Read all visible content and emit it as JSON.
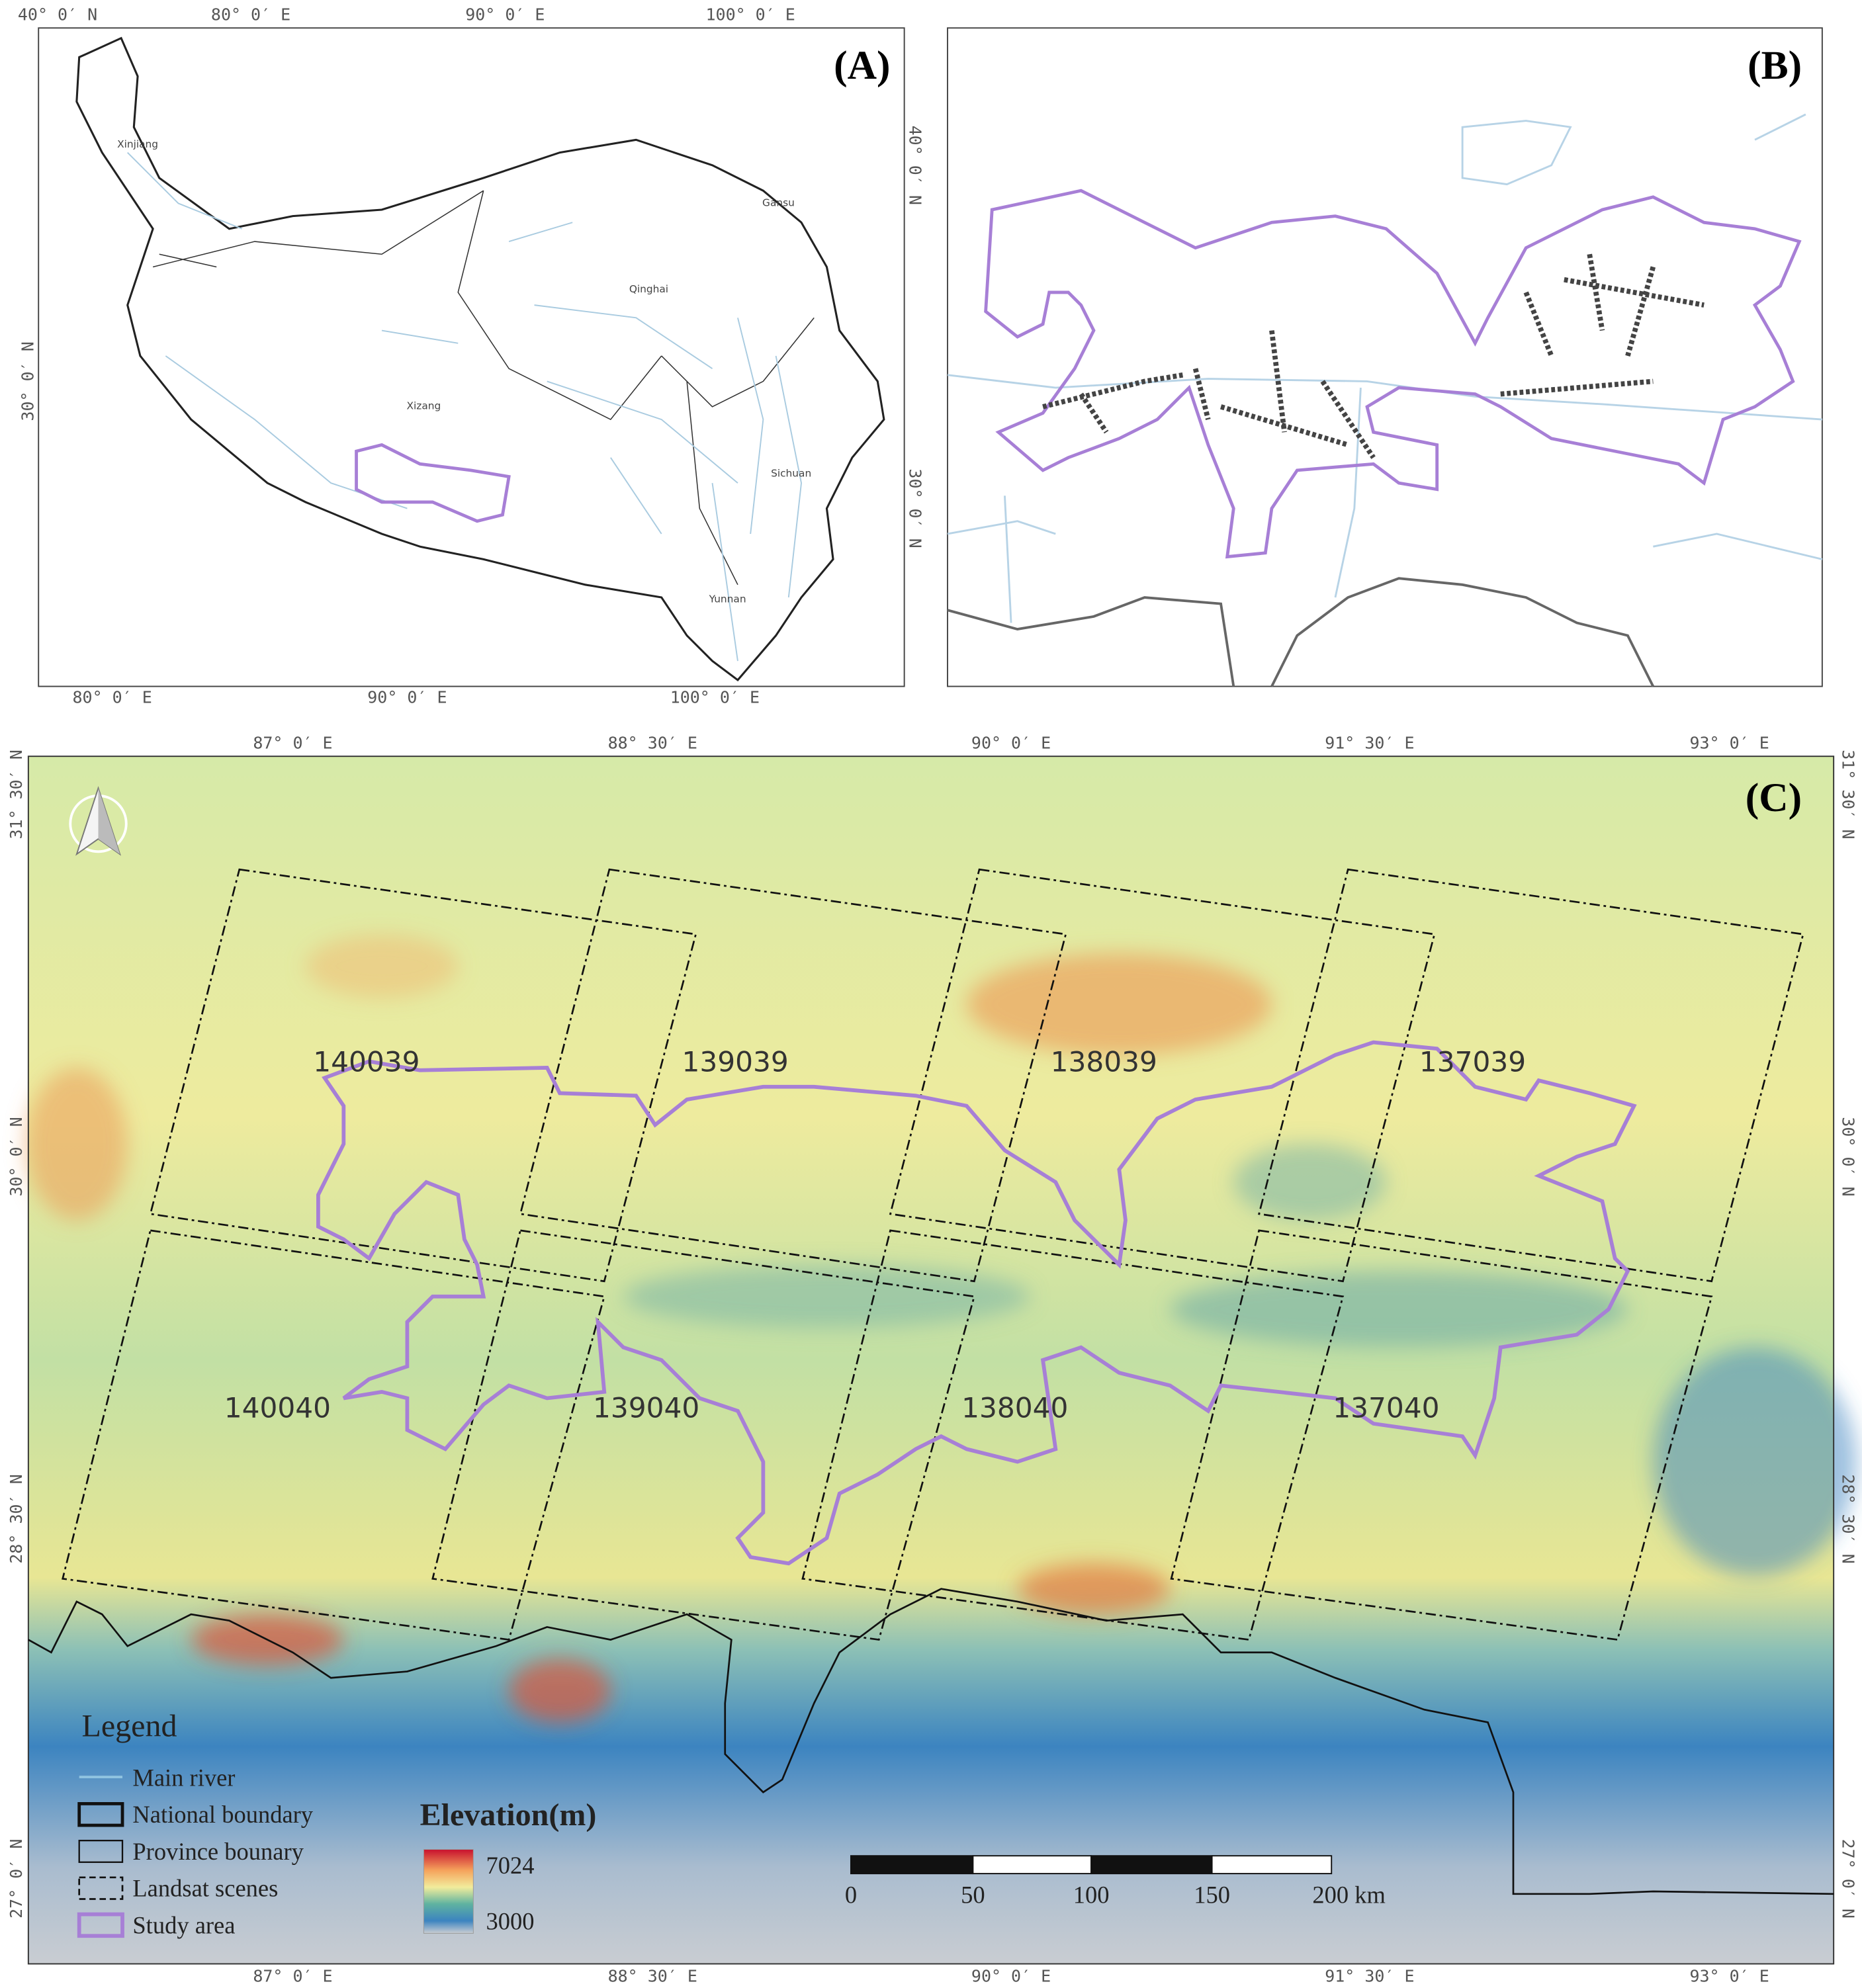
{
  "panel_a": {
    "label": "(A)",
    "top_labels": [
      "40° 0′ N",
      "80° 0′ E",
      "90° 0′ E",
      "100° 0′ E"
    ],
    "right_labels": [
      "40° 0′ N",
      "30° 0′ N"
    ],
    "left_labels": [
      "30° 0′ N"
    ],
    "bottom_labels": [
      "80° 0′ E",
      "90° 0′ E",
      "100° 0′ E"
    ],
    "provinces": [
      "Xinjiang",
      "Gansu",
      "Qinghai",
      "Xizang",
      "Sichuan",
      "Yunnan"
    ]
  },
  "panel_b": {
    "label": "(B)"
  },
  "panel_c": {
    "label": "(C)",
    "top_labels": [
      "87° 0′ E",
      "88° 30′ E",
      "90° 0′ E",
      "91° 30′ E",
      "93° 0′ E"
    ],
    "bottom_labels": [
      "87° 0′ E",
      "88° 30′ E",
      "90° 0′ E",
      "91° 30′ E",
      "93° 0′ E"
    ],
    "left_labels": [
      "31° 30′ N",
      "30° 0′ N",
      "28° 30′ N",
      "27° 0′ N"
    ],
    "right_labels": [
      "31° 30′ N",
      "30° 0′ N",
      "28° 30′ N",
      "27° 0′ N"
    ],
    "scenes": [
      "140039",
      "139039",
      "138039",
      "137039",
      "140040",
      "139040",
      "138040",
      "137040"
    ],
    "legend": {
      "title": "Legend",
      "items": [
        "Main river",
        "National boundary",
        "Province bounary",
        "Landsat scenes",
        "Study area"
      ]
    },
    "elevation": {
      "title": "Elevation(m)",
      "max": 7024,
      "min": 3000
    },
    "scale_bar": [
      "0",
      "50",
      "100",
      "150",
      "200 km"
    ]
  }
}
